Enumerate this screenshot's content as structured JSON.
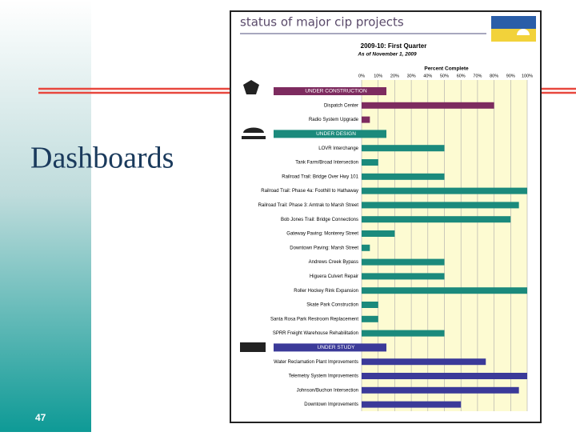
{
  "slide": {
    "title": "Dashboards",
    "page_number": "47"
  },
  "chart_data": {
    "type": "bar",
    "title": "status of major cip projects",
    "subtitle": "2009-10: First Quarter",
    "date_note": "As of November 1, 2009",
    "x_label": "Percent Complete",
    "xlim": [
      0,
      100
    ],
    "xticks": [
      {
        "value": 0,
        "label": "0%"
      },
      {
        "value": 10,
        "label": "10%"
      },
      {
        "value": 20,
        "label": "20%"
      },
      {
        "value": 30,
        "label": "30%"
      },
      {
        "value": 40,
        "label": "40%"
      },
      {
        "value": 50,
        "label": "50%"
      },
      {
        "value": 60,
        "label": "60%"
      },
      {
        "value": 70,
        "label": "70%"
      },
      {
        "value": 80,
        "label": "80%"
      },
      {
        "value": 90,
        "label": "90%"
      },
      {
        "value": 100,
        "label": "100%"
      }
    ],
    "grid": true,
    "groups": [
      {
        "name": "UNDER CONSTRUCTION",
        "color": "#7d2b5f",
        "categories": [
          "Dispatch Center",
          "Radio System Upgrade"
        ],
        "values": [
          80,
          5
        ]
      },
      {
        "name": "UNDER DESIGN",
        "color": "#1b8a7c",
        "categories": [
          "LOVR Interchange",
          "Tank Farm/Broad Intersection",
          "Railroad Trail: Bridge Over Hwy 101",
          "Railroad Trail: Phase 4a: Foothill to Hathaway",
          "Railroad Trail: Phase 3: Amtrak to Marsh Street",
          "Bob Jones Trail: Bridge Connections",
          "Gateway Paving: Monterey Street",
          "Downtown Paving: Marsh Street",
          "Andrews Creek Bypass",
          "Higuera Culvert Repair",
          "Roller Hockey Rink Expansion",
          "Skate Park Construction",
          "Santa Rosa Park Restroom Replacement",
          "SPRR Freight Warehouse Rehabilitation"
        ],
        "values": [
          50,
          10,
          50,
          100,
          95,
          90,
          20,
          5,
          50,
          50,
          100,
          10,
          10,
          50
        ]
      },
      {
        "name": "UNDER STUDY",
        "color": "#3b3a99",
        "categories": [
          "Water Reclamation Plant Improvements",
          "Telemetry System Improvements",
          "Johnson/Buchon Intersection",
          "Downtown Improvements"
        ],
        "values": [
          75,
          100,
          95,
          60
        ]
      }
    ]
  }
}
